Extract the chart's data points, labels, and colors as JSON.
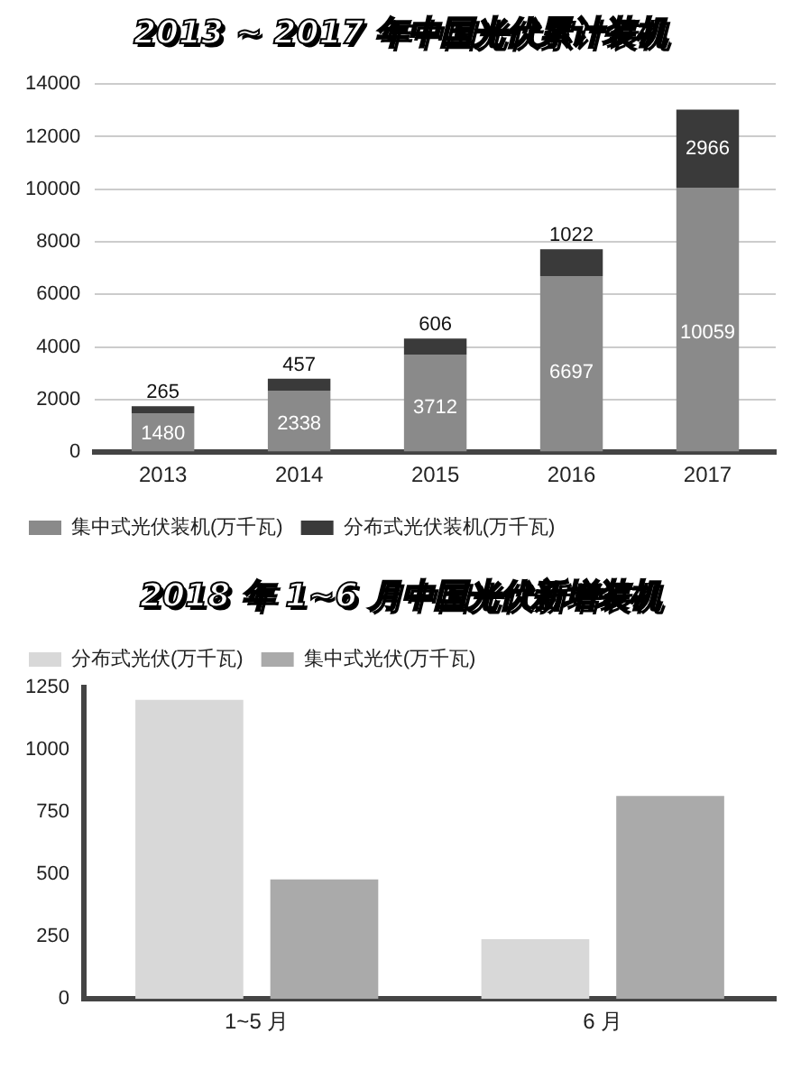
{
  "chart_data": [
    {
      "type": "bar",
      "title": "2013 ~ 2017 年中国光伏累计装机",
      "categories": [
        "2013",
        "2014",
        "2015",
        "2016",
        "2017"
      ],
      "stacked": true,
      "series": [
        {
          "name": "集中式光伏装机(万千瓦)",
          "color": "#8a8a8a",
          "values": [
            1480,
            2338,
            3712,
            6697,
            10059
          ]
        },
        {
          "name": "分布式光伏装机(万千瓦)",
          "color": "#3a3a3a",
          "values": [
            265,
            457,
            606,
            1022,
            2966
          ]
        }
      ],
      "ylim": [
        0,
        14000
      ],
      "yticks": [
        0,
        2000,
        4000,
        6000,
        8000,
        10000,
        12000,
        14000
      ],
      "grid": "y",
      "legend": "bottom",
      "data_labels": true
    },
    {
      "type": "bar",
      "title": "2018 年 1~6 月中国光伏新增装机",
      "categories": [
        "1~5 月",
        "6 月"
      ],
      "series": [
        {
          "name": "分布式光伏(万千瓦)",
          "color": "#d8d8d8",
          "values": [
            1200,
            240
          ]
        },
        {
          "name": "集中式光伏(万千瓦)",
          "color": "#aaaaaa",
          "values": [
            480,
            815
          ]
        }
      ],
      "ylim": [
        0,
        1250
      ],
      "yticks": [
        0,
        250,
        500,
        750,
        1000,
        1250
      ],
      "legend": "top"
    }
  ]
}
